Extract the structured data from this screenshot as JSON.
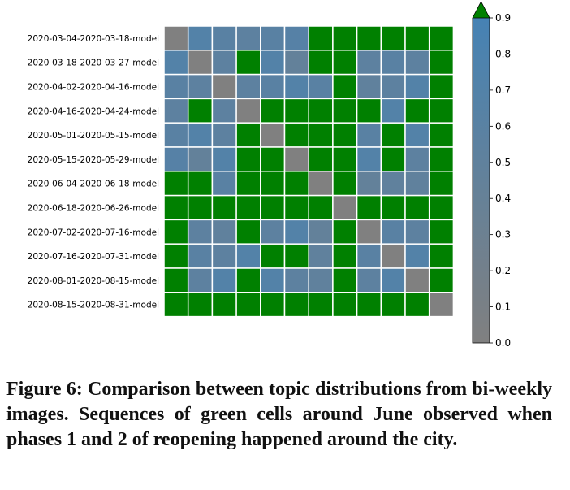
{
  "figure": {
    "caption": "Figure 6: Comparison between topic distributions from bi-weekly images. Sequences of green cells around June observed when phases 1 and 2 of reopening happened around the city."
  },
  "chart_data": {
    "type": "heatmap",
    "title": "",
    "xlabel": "",
    "ylabel": "",
    "rows": [
      "2020-03-04-2020-03-18-model",
      "2020-03-18-2020-03-27-model",
      "2020-04-02-2020-04-16-model",
      "2020-04-16-2020-04-24-model",
      "2020-05-01-2020-05-15-model",
      "2020-05-15-2020-05-29-model",
      "2020-06-04-2020-06-18-model",
      "2020-06-18-2020-06-26-model",
      "2020-07-02-2020-07-16-model",
      "2020-07-16-2020-07-31-model",
      "2020-08-01-2020-08-15-model",
      "2020-08-15-2020-08-31-model"
    ],
    "values": [
      [
        0.0,
        0.7,
        0.6,
        0.55,
        0.6,
        0.65,
        1,
        1,
        1,
        1,
        1,
        1
      ],
      [
        0.7,
        0.0,
        0.55,
        1,
        0.7,
        0.45,
        1,
        1,
        0.55,
        0.6,
        0.55,
        1
      ],
      [
        0.6,
        0.55,
        0.0,
        0.55,
        0.6,
        0.7,
        0.6,
        1,
        0.5,
        0.55,
        0.7,
        1
      ],
      [
        0.55,
        1,
        0.55,
        0.0,
        1,
        1,
        1,
        1,
        1,
        0.7,
        1,
        1
      ],
      [
        0.6,
        0.7,
        0.55,
        1,
        0.0,
        1,
        1,
        1,
        0.6,
        1,
        0.7,
        1
      ],
      [
        0.65,
        0.45,
        0.7,
        1,
        1,
        0.0,
        1,
        1,
        0.7,
        1,
        0.55,
        1
      ],
      [
        1,
        1,
        0.6,
        1,
        1,
        1,
        0.0,
        1,
        0.45,
        0.5,
        0.5,
        1
      ],
      [
        1,
        1,
        1,
        1,
        1,
        1,
        1,
        0.0,
        1,
        1,
        1,
        1
      ],
      [
        1,
        0.55,
        0.5,
        1,
        0.55,
        0.7,
        0.45,
        1,
        0.0,
        0.6,
        0.55,
        1
      ],
      [
        1,
        0.6,
        0.55,
        0.7,
        1,
        1,
        0.5,
        1,
        0.6,
        0.0,
        0.7,
        1
      ],
      [
        1,
        0.55,
        0.7,
        1,
        0.7,
        0.55,
        0.5,
        1,
        0.55,
        0.7,
        0.0,
        1
      ],
      [
        1,
        1,
        1,
        1,
        1,
        1,
        1,
        1,
        1,
        1,
        1,
        0.0
      ]
    ],
    "colorbar": {
      "range": [
        0.0,
        0.9
      ],
      "ticks": [
        "0.0",
        "0.1",
        "0.2",
        "0.3",
        "0.4",
        "0.5",
        "0.6",
        "0.7",
        "0.8",
        "0.9"
      ],
      "extend": "max"
    },
    "colors": {
      "low": "#808080",
      "high": "#4682b4",
      "over": "#008000",
      "grid": "#ffffff",
      "axis": "#000000"
    }
  }
}
